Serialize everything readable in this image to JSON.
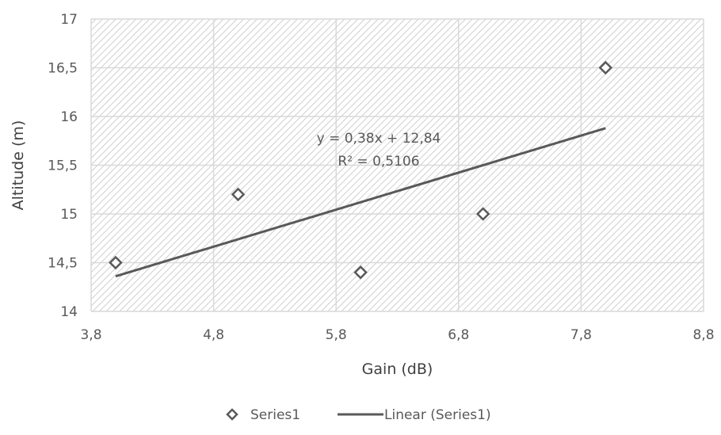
{
  "chart_data": {
    "type": "scatter",
    "xlabel": "Gain (dB)",
    "ylabel": "Altitude (m)",
    "xlim": [
      3.8,
      8.8
    ],
    "ylim": [
      14,
      17
    ],
    "x_ticks": [
      "3,8",
      "4,8",
      "5,8",
      "6,8",
      "7,8",
      "8,8"
    ],
    "y_ticks": [
      "14",
      "14,5",
      "15",
      "15,5",
      "16",
      "16,5",
      "17"
    ],
    "series": [
      {
        "name": "Series1",
        "marker": "diamond",
        "points": [
          {
            "x": 4,
            "y": 14.5
          },
          {
            "x": 5,
            "y": 15.2
          },
          {
            "x": 6,
            "y": 14.4
          },
          {
            "x": 7,
            "y": 15.0
          },
          {
            "x": 8,
            "y": 16.5
          }
        ]
      }
    ],
    "trendline": {
      "name": "Linear (Series1)",
      "type": "linear",
      "slope": 0.38,
      "intercept": 12.84,
      "x_range": [
        4,
        8
      ],
      "equation_label": "y = 0,38x + 12,84",
      "r2_label": "R² = 0,5106"
    },
    "grid": true,
    "legend_position": "bottom",
    "colors": {
      "marker": "#595959",
      "trendline": "#595959",
      "grid": "#d9d9d9",
      "plot_hatch": "#d0d0d0"
    }
  }
}
